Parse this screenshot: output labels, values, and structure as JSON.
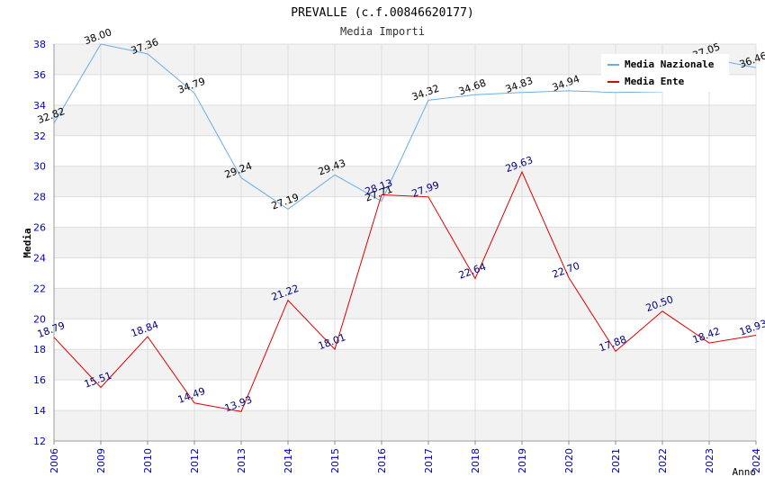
{
  "colors": {
    "nazionale": "#6aaee8",
    "ente": "#e00000",
    "ente_label": "#000080",
    "nazionale_label": "#000000",
    "tick_label": "#0000cc",
    "band": "#f2f2f2",
    "grid": "#dddddd"
  },
  "chart_data": {
    "type": "line",
    "title": "PREVALLE (c.f.00846620177)",
    "subtitle": "Media Importi",
    "xlabel": "Anno",
    "ylabel": "Media",
    "ylim": [
      12,
      38
    ],
    "yticks": [
      12,
      14,
      16,
      18,
      20,
      22,
      24,
      26,
      28,
      30,
      32,
      34,
      36,
      38
    ],
    "categories": [
      "2006",
      "2009",
      "2010",
      "2012",
      "2013",
      "2014",
      "2015",
      "2016",
      "2017",
      "2018",
      "2019",
      "2020",
      "2021",
      "2022",
      "2023",
      "2024"
    ],
    "legend_position": "top-right",
    "series": [
      {
        "name": "Media Nazionale",
        "color_key": "nazionale",
        "values": [
          32.82,
          38.0,
          37.36,
          34.79,
          29.24,
          27.19,
          29.43,
          27.71,
          34.32,
          34.68,
          34.83,
          34.94,
          34.83,
          34.88,
          37.05,
          36.46
        ],
        "labels": [
          "32.82",
          "38.00",
          "37.36",
          "34.79",
          "29.24",
          "27.19",
          "29.43",
          "27.71",
          "34.32",
          "34.68",
          "34.83",
          "34.94",
          "",
          "",
          "37.05",
          "36.46"
        ]
      },
      {
        "name": "Media Ente",
        "color_key": "ente",
        "values": [
          18.79,
          15.51,
          18.84,
          14.49,
          13.93,
          21.22,
          18.01,
          28.13,
          27.99,
          22.64,
          29.63,
          22.7,
          17.88,
          20.5,
          18.42,
          18.93
        ],
        "labels": [
          "18.79",
          "15.51",
          "18.84",
          "14.49",
          "13.93",
          "21.22",
          "18.01",
          "28.13",
          "27.99",
          "22.64",
          "29.63",
          "22.70",
          "17.88",
          "20.50",
          "18.42",
          "18.93"
        ]
      }
    ]
  }
}
